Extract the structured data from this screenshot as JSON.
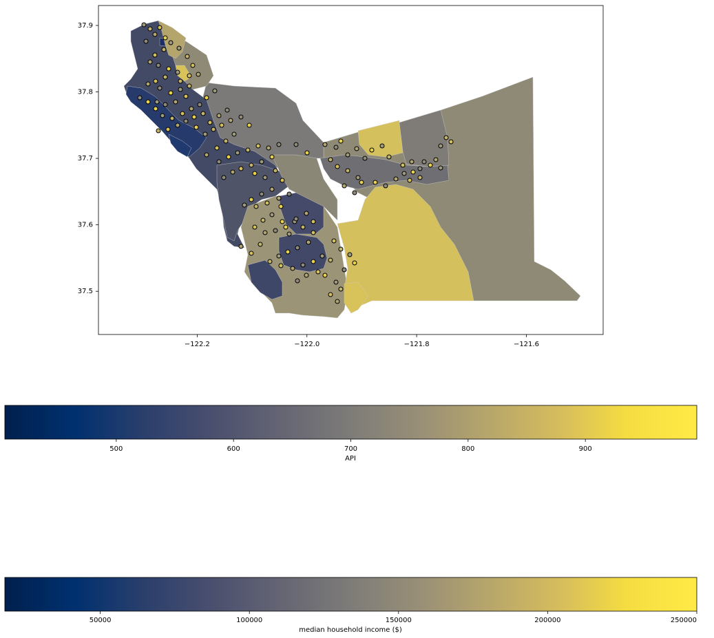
{
  "map": {
    "x_ticks": [
      "−122.2",
      "−122.0",
      "−121.8",
      "−121.6"
    ],
    "x_tick_values": [
      -122.2,
      -122.0,
      -121.8,
      -121.6
    ],
    "y_ticks": [
      "37.9",
      "37.8",
      "37.7",
      "37.6",
      "37.5"
    ],
    "y_tick_values": [
      37.9,
      37.8,
      37.7,
      37.6,
      37.5
    ],
    "xlim": [
      -122.38,
      -121.46
    ],
    "ylim": [
      37.435,
      37.93
    ],
    "colormap": "cividis",
    "colormap_stops": [
      "#00204d",
      "#00306f",
      "#2a3f6c",
      "#4a4f6e",
      "#656573",
      "#7e7c78",
      "#998f77",
      "#b7a66b",
      "#d5bc5d",
      "#f5dd41",
      "#ffea46"
    ],
    "point_fill": "#d4c05c",
    "point_edge": "#000000"
  },
  "colorbar_api": {
    "label": "API",
    "tick_labels": [
      "500",
      "600",
      "700",
      "800",
      "900"
    ],
    "tick_values": [
      500,
      600,
      700,
      800,
      900
    ],
    "range": [
      405,
      995
    ]
  },
  "colorbar_income": {
    "label": "median household income ($)",
    "tick_labels": [
      "50000",
      "100000",
      "150000",
      "200000",
      "250000"
    ],
    "tick_values": [
      50000,
      100000,
      150000,
      200000,
      250000
    ],
    "range": [
      18000,
      250000
    ]
  }
}
